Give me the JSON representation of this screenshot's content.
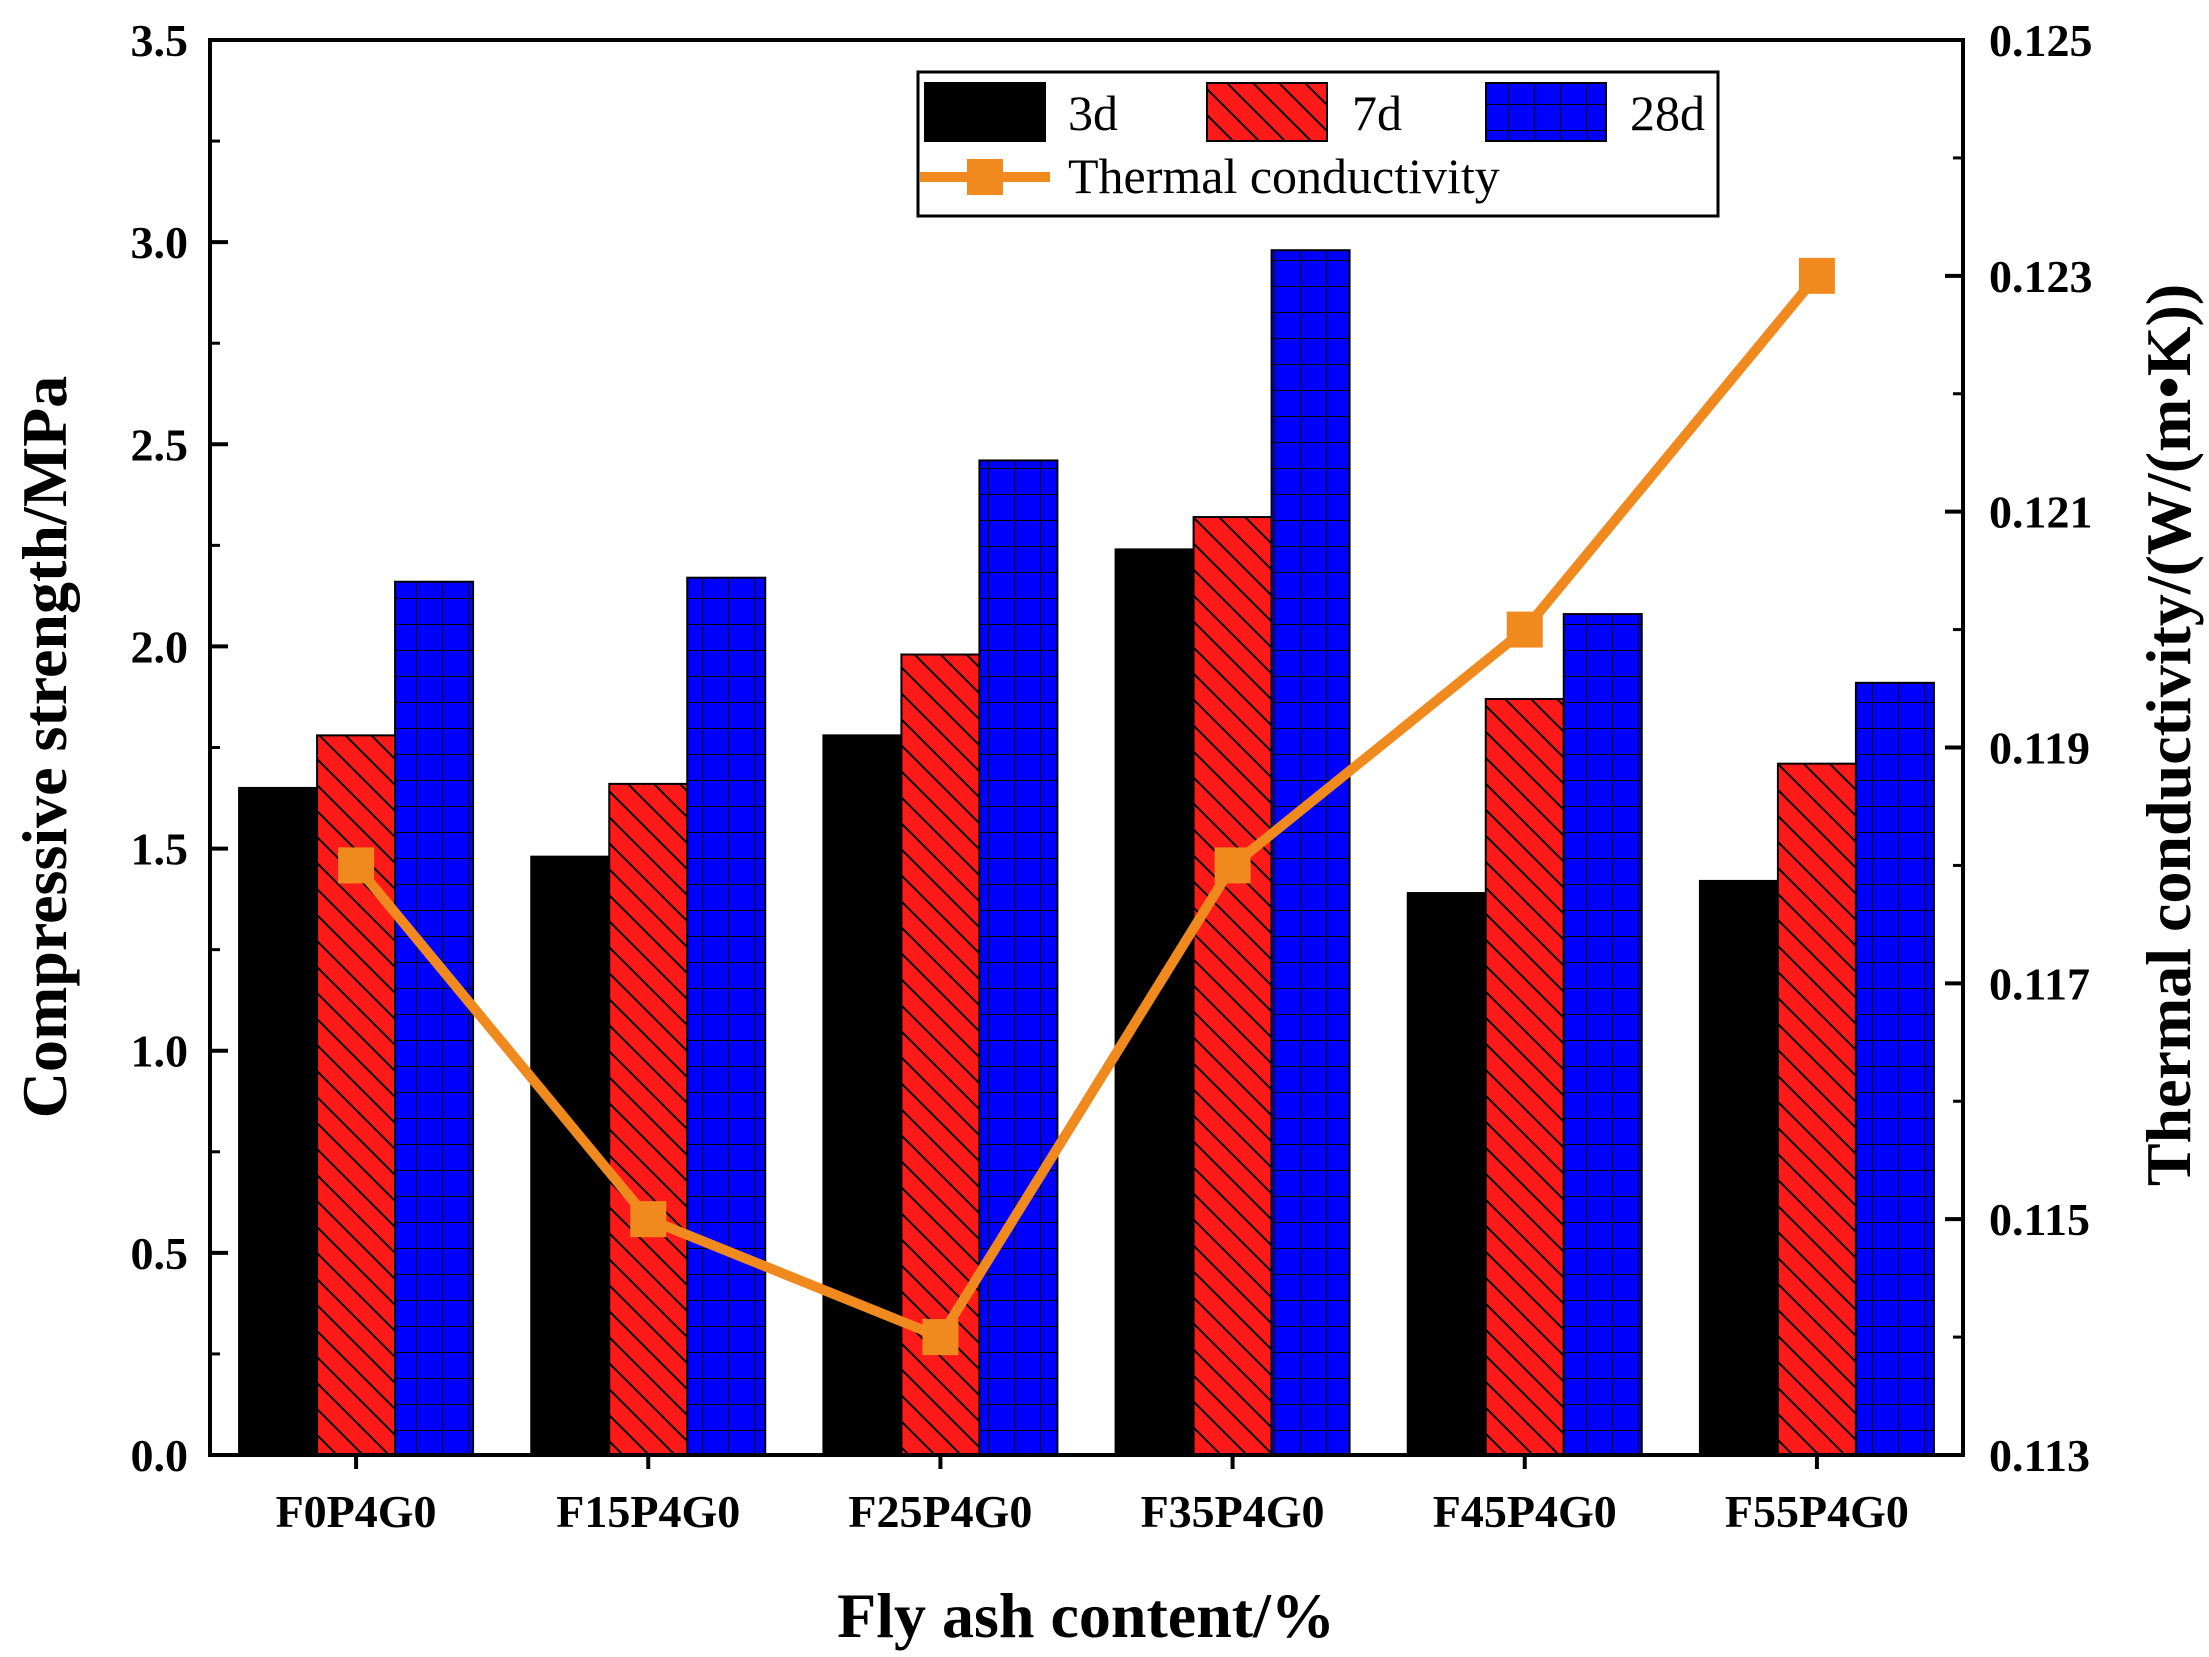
{
  "chart_data": {
    "type": "bar",
    "xlabel": "Fly ash content/%",
    "ylabel": "Compressive strength/MPa",
    "y2label": "Thermal conductivity/(W/(m•K))",
    "categories": [
      "F0P4G0",
      "F15P4G0",
      "F25P4G0",
      "F35P4G0",
      "F45P4G0",
      "F55P4G0"
    ],
    "ylim": [
      0,
      3.5
    ],
    "yticks": [
      "0.0",
      "0.5",
      "1.0",
      "1.5",
      "2.0",
      "2.5",
      "3.0",
      "3.5"
    ],
    "y2lim": [
      0.113,
      0.125
    ],
    "y2ticks": [
      "0.113",
      "0.115",
      "0.117",
      "0.119",
      "0.121",
      "0.123",
      "0.125"
    ],
    "series": [
      {
        "name": "3d",
        "values": [
          1.65,
          1.48,
          1.78,
          2.24,
          1.39,
          1.42
        ],
        "color": "#000000",
        "pattern": "solid"
      },
      {
        "name": "7d",
        "values": [
          1.78,
          1.66,
          1.98,
          2.32,
          1.87,
          1.71
        ],
        "color": "#ff1a1a",
        "pattern": "diagonal"
      },
      {
        "name": "28d",
        "values": [
          2.16,
          2.17,
          2.46,
          2.98,
          2.08,
          1.91
        ],
        "color": "#0000ff",
        "pattern": "grid"
      }
    ],
    "line_series": {
      "name": "Thermal conductivity",
      "axis": "right",
      "values": [
        0.118,
        0.115,
        0.114,
        0.118,
        0.12,
        0.123
      ],
      "color": "#f08a1e"
    },
    "legend_position": "top-right",
    "grid": false
  }
}
